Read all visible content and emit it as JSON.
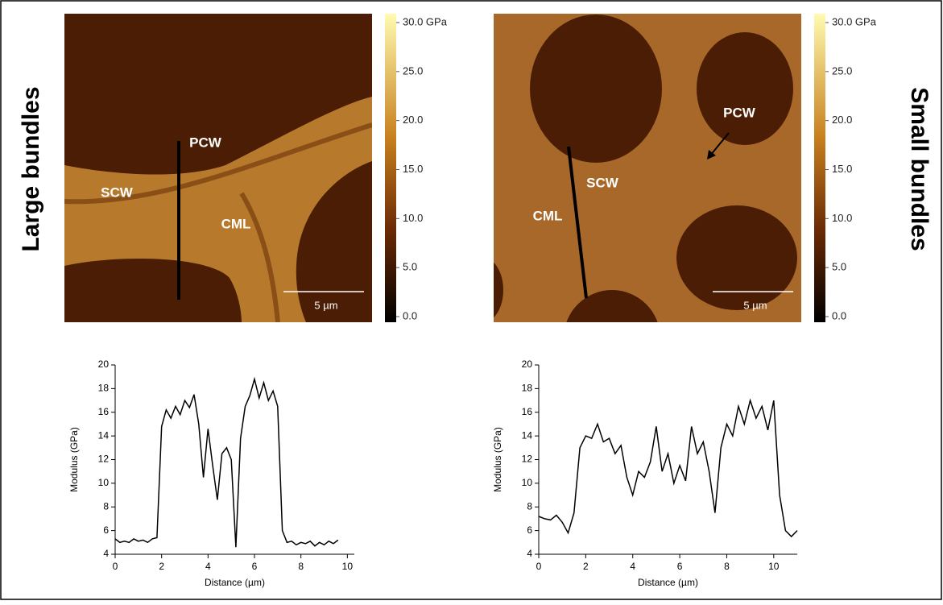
{
  "side_labels": [
    "Large bundles",
    "Small bundles"
  ],
  "panels": [
    {
      "labels": [
        "PCW",
        "SCW",
        "CML"
      ],
      "scale_bar": "5 µm",
      "colorbar": {
        "ticks": [
          {
            "value": 30,
            "label": "30.0 GPa"
          },
          {
            "value": 25,
            "label": "25.0"
          },
          {
            "value": 20,
            "label": "20.0"
          },
          {
            "value": 15,
            "label": "15.0"
          },
          {
            "value": 10,
            "label": "10.0"
          },
          {
            "value": 5,
            "label": "5.0"
          },
          {
            "value": 0,
            "label": "0.0"
          }
        ]
      }
    },
    {
      "labels": [
        "PCW",
        "SCW",
        "CML"
      ],
      "scale_bar": "5 µm",
      "colorbar": {
        "ticks": [
          {
            "value": 30,
            "label": "30.0 GPa"
          },
          {
            "value": 25,
            "label": "25.0"
          },
          {
            "value": 20,
            "label": "20.0"
          },
          {
            "value": 15,
            "label": "15.0"
          },
          {
            "value": 10,
            "label": "10.0"
          },
          {
            "value": 5,
            "label": "5.0"
          },
          {
            "value": 0,
            "label": "0.0"
          }
        ]
      }
    }
  ],
  "chart_data": [
    {
      "type": "line",
      "x_label": "Distance (µm)",
      "y_label": "Modulus (GPa)",
      "color": "#000000",
      "x": [
        0,
        0.2,
        0.4,
        0.6,
        0.8,
        1.0,
        1.2,
        1.4,
        1.6,
        1.8,
        2.0,
        2.2,
        2.4,
        2.6,
        2.8,
        3.0,
        3.2,
        3.4,
        3.6,
        3.8,
        4.0,
        4.2,
        4.4,
        4.6,
        4.8,
        5.0,
        5.2,
        5.4,
        5.6,
        5.8,
        6.0,
        6.2,
        6.4,
        6.6,
        6.8,
        7.0,
        7.2,
        7.4,
        7.6,
        7.8,
        8.0,
        8.2,
        8.4,
        8.6,
        8.8,
        9.0,
        9.2,
        9.4,
        9.6
      ],
      "values": [
        5.3,
        5.0,
        5.1,
        5.0,
        5.3,
        5.1,
        5.2,
        5.0,
        5.3,
        5.4,
        14.8,
        16.2,
        15.5,
        16.5,
        15.8,
        17.0,
        16.4,
        17.5,
        15.0,
        10.5,
        14.6,
        11.5,
        8.6,
        12.5,
        13.0,
        12.0,
        4.6,
        13.8,
        16.5,
        17.4,
        18.8,
        17.2,
        18.5,
        17.0,
        17.8,
        16.5,
        6.0,
        5.0,
        5.1,
        4.8,
        5.0,
        4.9,
        5.1,
        4.7,
        5.0,
        4.8,
        5.1,
        4.9,
        5.2
      ],
      "xlim": [
        0,
        10.3
      ],
      "ylim": [
        4,
        20
      ],
      "xticks": [
        0,
        2,
        4,
        6,
        8,
        10
      ],
      "yticks": [
        4,
        6,
        8,
        10,
        12,
        14,
        16,
        18,
        20
      ]
    },
    {
      "type": "line",
      "x_label": "Distance (µm)",
      "y_label": "Modulus (GPa)",
      "color": "#000000",
      "x": [
        0,
        0.25,
        0.5,
        0.75,
        1.0,
        1.25,
        1.5,
        1.75,
        2.0,
        2.25,
        2.5,
        2.75,
        3.0,
        3.25,
        3.5,
        3.75,
        4.0,
        4.25,
        4.5,
        4.75,
        5.0,
        5.25,
        5.5,
        5.75,
        6.0,
        6.25,
        6.5,
        6.75,
        7.0,
        7.25,
        7.5,
        7.75,
        8.0,
        8.25,
        8.5,
        8.75,
        9.0,
        9.25,
        9.5,
        9.75,
        10.0,
        10.25,
        10.5,
        10.75,
        11.0
      ],
      "values": [
        7.2,
        7.0,
        6.9,
        7.3,
        6.7,
        5.8,
        7.5,
        13.0,
        14.0,
        13.8,
        15.0,
        13.5,
        13.8,
        12.5,
        13.2,
        10.5,
        9.0,
        11.0,
        10.5,
        11.8,
        14.8,
        11.0,
        12.5,
        10.0,
        11.5,
        10.2,
        14.8,
        12.5,
        13.5,
        11.0,
        7.5,
        13.0,
        15.0,
        14.0,
        16.5,
        15.0,
        17.0,
        15.5,
        16.5,
        14.5,
        17.0,
        9.0,
        6.0,
        5.5,
        6.0
      ],
      "xlim": [
        0,
        11
      ],
      "ylim": [
        4,
        20
      ],
      "xticks": [
        0,
        2,
        4,
        6,
        8,
        10
      ],
      "yticks": [
        4,
        6,
        8,
        10,
        12,
        14,
        16,
        18,
        20
      ]
    }
  ]
}
